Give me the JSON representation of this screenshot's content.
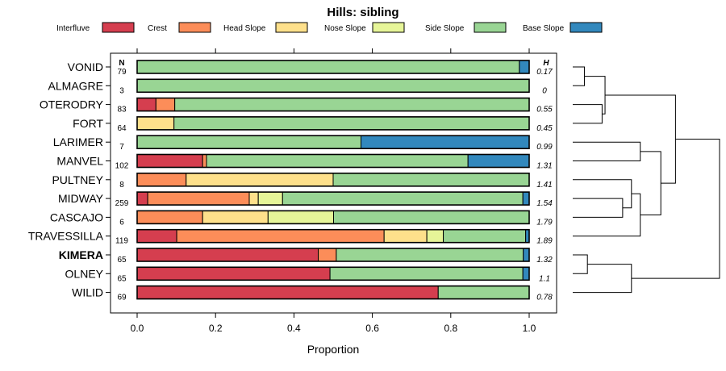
{
  "chart_data": {
    "type": "bar",
    "orientation": "horizontal-stacked",
    "title": "Hills: sibling",
    "xlabel": "Proportion",
    "ylabel": "",
    "xlim": [
      0,
      1
    ],
    "x_ticks": [
      "0.0",
      "0.2",
      "0.4",
      "0.6",
      "0.8",
      "1.0"
    ],
    "x_tick_values": [
      0,
      0.2,
      0.4,
      0.6,
      0.8,
      1.0
    ],
    "n_header": "N",
    "h_header": "H",
    "legend": [
      {
        "name": "Interfluve",
        "color": "#d53e4f"
      },
      {
        "name": "Crest",
        "color": "#fc8d59"
      },
      {
        "name": "Head Slope",
        "color": "#fee08b"
      },
      {
        "name": "Nose Slope",
        "color": "#e6f598"
      },
      {
        "name": "Side Slope",
        "color": "#99d594"
      },
      {
        "name": "Base Slope",
        "color": "#3288bd"
      }
    ],
    "rows": [
      {
        "label": "VONID",
        "bold": false,
        "n": "79",
        "h": "0.17",
        "values": [
          0,
          0,
          0,
          0,
          0.975,
          0.025
        ]
      },
      {
        "label": "ALMAGRE",
        "bold": false,
        "n": "3",
        "h": "0",
        "values": [
          0,
          0,
          0,
          0,
          1.0,
          0
        ]
      },
      {
        "label": "OTERODRY",
        "bold": false,
        "n": "83",
        "h": "0.55",
        "values": [
          0.048,
          0.048,
          0,
          0,
          0.904,
          0
        ]
      },
      {
        "label": "FORT",
        "bold": false,
        "n": "64",
        "h": "0.45",
        "values": [
          0,
          0,
          0.094,
          0,
          0.906,
          0
        ]
      },
      {
        "label": "LARIMER",
        "bold": false,
        "n": "7",
        "h": "0.99",
        "values": [
          0,
          0,
          0,
          0,
          0.571,
          0.429
        ]
      },
      {
        "label": "MANVEL",
        "bold": false,
        "n": "102",
        "h": "1.31",
        "values": [
          0.167,
          0.01,
          0,
          0,
          0.667,
          0.157
        ]
      },
      {
        "label": "PULTNEY",
        "bold": false,
        "n": "8",
        "h": "1.41",
        "values": [
          0,
          0.125,
          0.375,
          0,
          0.5,
          0
        ]
      },
      {
        "label": "MIDWAY",
        "bold": false,
        "n": "259",
        "h": "1.54",
        "values": [
          0.027,
          0.259,
          0.023,
          0.062,
          0.613,
          0.016
        ]
      },
      {
        "label": "CASCAJO",
        "bold": false,
        "n": "6",
        "h": "1.79",
        "values": [
          0,
          0.167,
          0.167,
          0.167,
          0.5,
          0
        ]
      },
      {
        "label": "TRAVESSILLA",
        "bold": false,
        "n": "119",
        "h": "1.89",
        "values": [
          0.101,
          0.529,
          0.109,
          0.042,
          0.21,
          0.009
        ]
      },
      {
        "label": "KIMERA",
        "bold": true,
        "n": "65",
        "h": "1.32",
        "values": [
          0.462,
          0.046,
          0,
          0,
          0.477,
          0.015
        ]
      },
      {
        "label": "OLNEY",
        "bold": false,
        "n": "65",
        "h": "1.1",
        "values": [
          0.492,
          0,
          0,
          0,
          0.492,
          0.016
        ]
      },
      {
        "label": "WILID",
        "bold": false,
        "n": "69",
        "h": "0.78",
        "values": [
          0.768,
          0,
          0,
          0,
          0.232,
          0
        ]
      }
    ],
    "dendrogram": {
      "leaf_order": [
        "VONID",
        "ALMAGRE",
        "OTERODRY",
        "FORT",
        "LARIMER",
        "MANVEL",
        "PULTNEY",
        "MIDWAY",
        "CASCAJO",
        "TRAVESSILLA",
        "KIMERA",
        "OLNEY",
        "WILID"
      ],
      "merges": [
        {
          "a": "VONID",
          "b": "ALMAGRE",
          "height": 0.08
        },
        {
          "a": "OTERODRY",
          "b": "FORT",
          "height": 0.2
        },
        {
          "a": "m0",
          "b": "m1",
          "height": 0.22
        },
        {
          "a": "LARIMER",
          "b": "MANVEL",
          "height": 0.46
        },
        {
          "a": "MIDWAY",
          "b": "CASCAJO",
          "height": 0.34
        },
        {
          "a": "PULTNEY",
          "b": "m4",
          "height": 0.4
        },
        {
          "a": "m5",
          "b": "TRAVESSILLA",
          "height": 0.46
        },
        {
          "a": "m3",
          "b": "m6",
          "height": 0.6
        },
        {
          "a": "m2",
          "b": "m7",
          "height": 0.7
        },
        {
          "a": "KIMERA",
          "b": "OLNEY",
          "height": 0.1
        },
        {
          "a": "m9",
          "b": "WILID",
          "height": 0.4
        },
        {
          "a": "m8",
          "b": "m10",
          "height": 1.0
        }
      ]
    }
  }
}
